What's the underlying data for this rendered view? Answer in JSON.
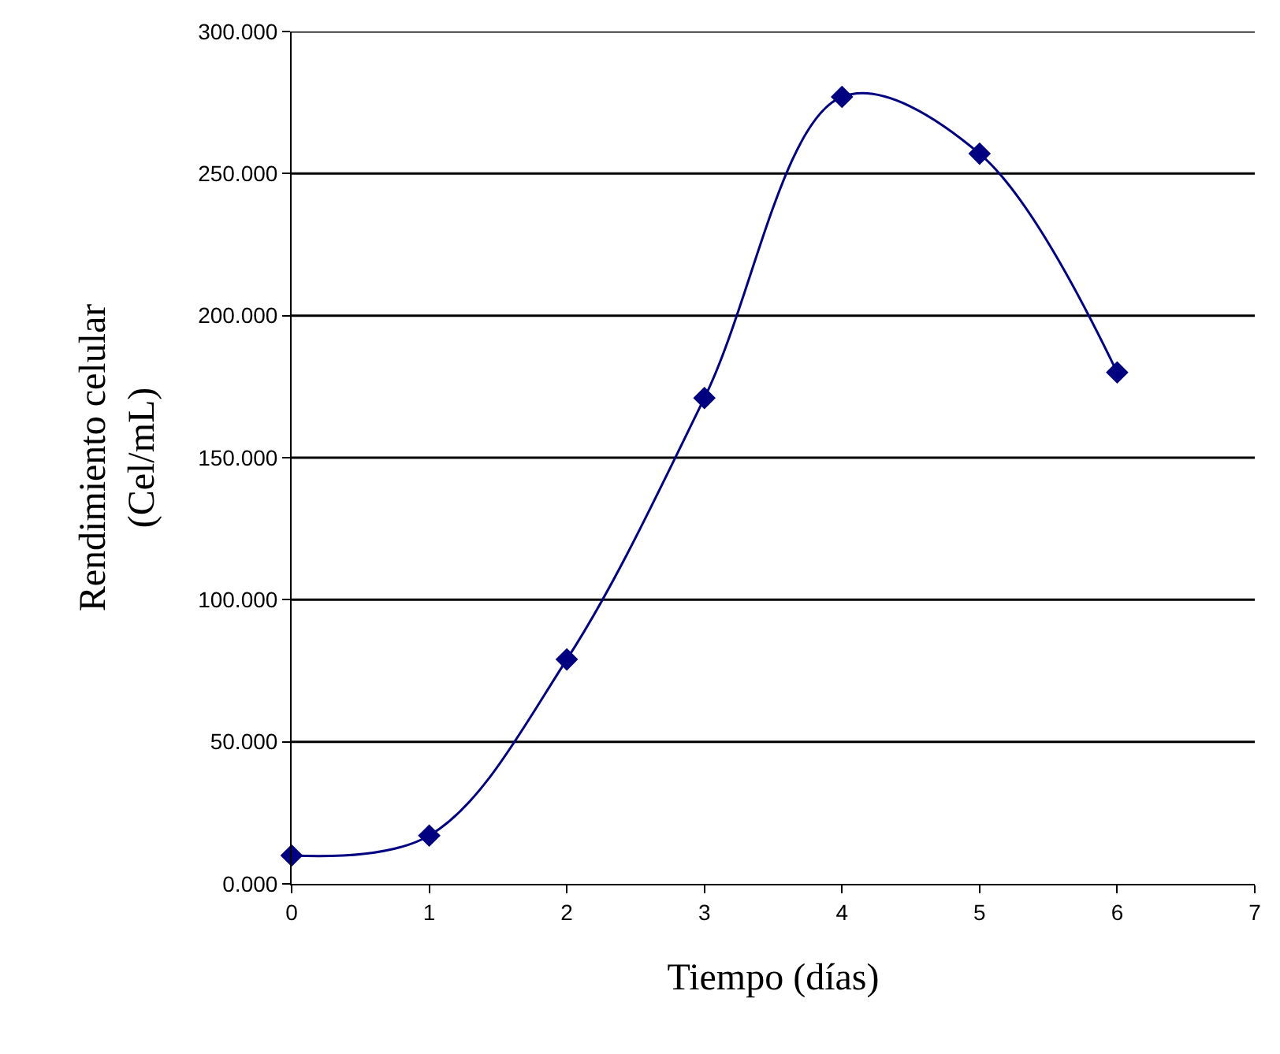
{
  "chart_data": {
    "type": "line",
    "xlabel": "Tiempo (días)",
    "ylabel": "Rendimiento celular\n(Cel/mL)",
    "x": [
      0,
      1,
      2,
      3,
      4,
      5,
      6
    ],
    "series": [
      {
        "color": "#000080",
        "values": [
          10,
          17,
          79,
          171,
          277,
          257,
          180
        ]
      }
    ],
    "xlim": [
      0,
      7
    ],
    "xticks": [
      0,
      1,
      2,
      3,
      4,
      5,
      6,
      7
    ],
    "ylim": [
      0,
      300
    ],
    "yticks": [
      {
        "value": 0,
        "label": "0.000"
      },
      {
        "value": 50,
        "label": "50.000"
      },
      {
        "value": 100,
        "label": "100.000"
      },
      {
        "value": 150,
        "label": "150.000"
      },
      {
        "value": 200,
        "label": "200.000"
      },
      {
        "value": 250,
        "label": "250.000"
      },
      {
        "value": 300,
        "label": "300.000"
      }
    ],
    "grid": "y",
    "marker": "diamond",
    "line_style": "solid"
  }
}
